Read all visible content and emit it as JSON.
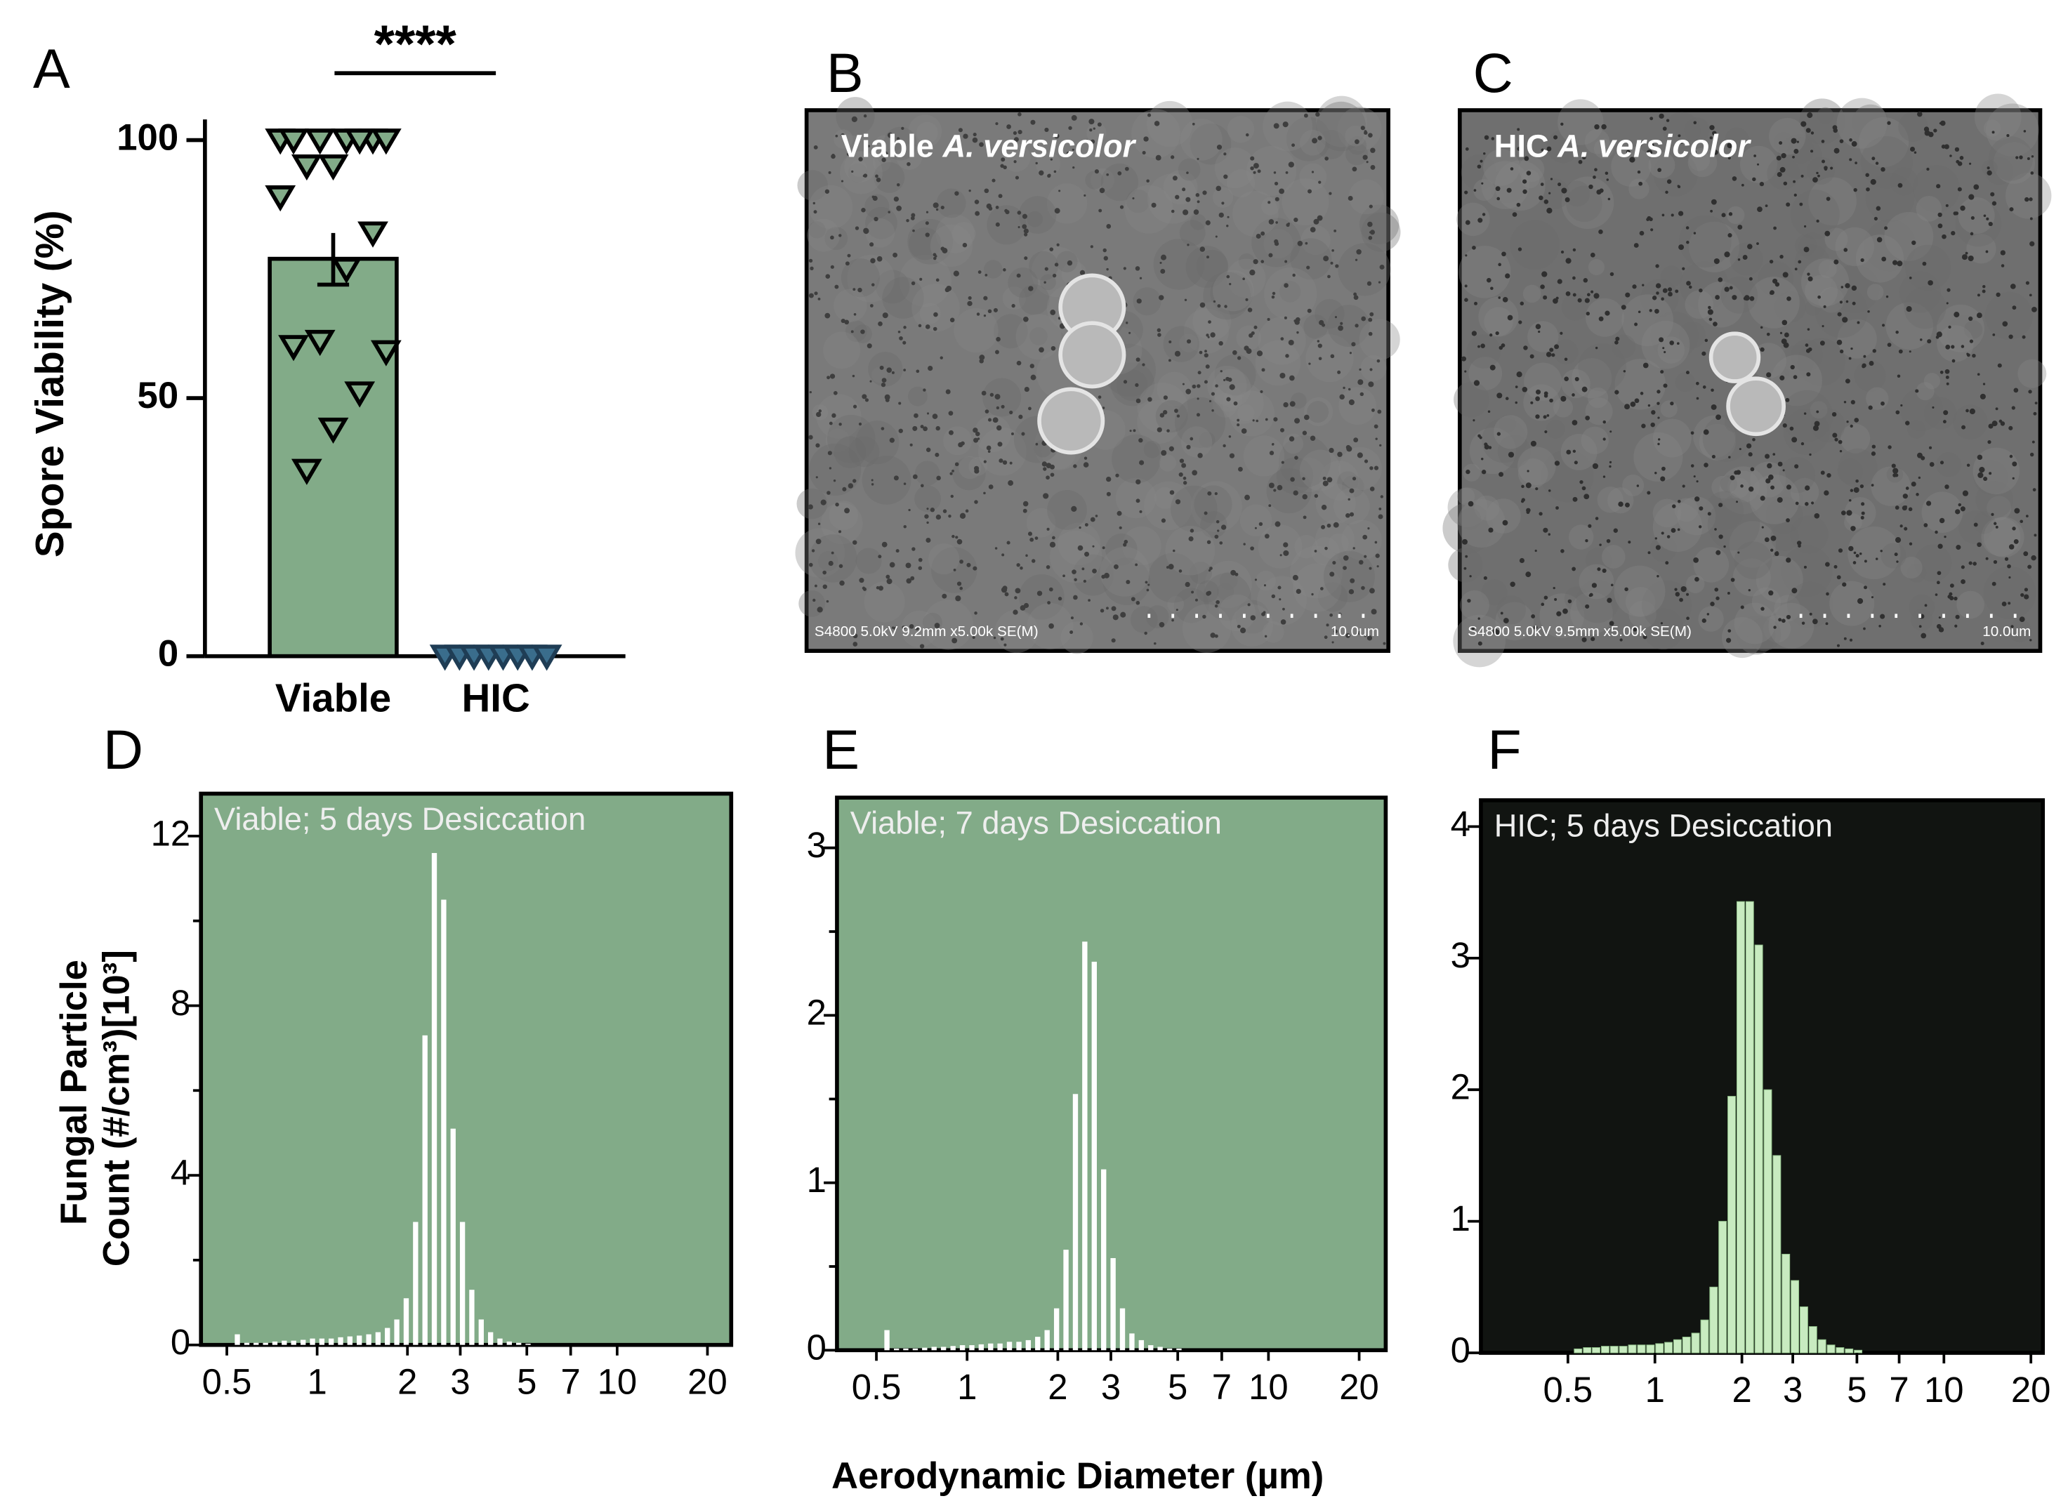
{
  "chart_data": [
    {
      "type": "bar",
      "panel_label": "A",
      "y_label": "Spore Viability (%)",
      "annotation": "****",
      "categories": [
        "Viable",
        "HIC"
      ],
      "values": [
        77,
        0
      ],
      "errors": [
        5,
        null
      ],
      "points": [
        [
          100,
          100,
          100,
          100,
          100,
          100,
          100,
          95,
          95,
          89,
          82,
          75,
          61,
          60,
          59,
          51,
          44,
          36
        ],
        [
          0,
          0,
          0,
          0,
          0,
          0,
          0,
          0
        ]
      ],
      "color": "#82ab88",
      "point_colors": [
        "#82ab88",
        "#3a6d8c"
      ],
      "ylim": [
        0,
        104
      ],
      "yticks": [
        0,
        50,
        100
      ]
    },
    {
      "type": "bar",
      "panel_label": "D",
      "title": "Viable; 5 days Desiccation",
      "log_x": true,
      "background": "#82ab88",
      "color": "#ffffff",
      "x": [
        0.542,
        0.583,
        0.626,
        0.673,
        0.723,
        0.777,
        0.835,
        0.898,
        0.965,
        1.037,
        1.114,
        1.197,
        1.286,
        1.382,
        1.486,
        1.596,
        1.715,
        1.843,
        1.981,
        2.129,
        2.288,
        2.458,
        2.642,
        2.839,
        3.051,
        3.278,
        3.523,
        3.786,
        4.068,
        4.371,
        4.698,
        5.048
      ],
      "values": [
        0.25,
        0.05,
        0.05,
        0.05,
        0.08,
        0.1,
        0.1,
        0.12,
        0.15,
        0.15,
        0.15,
        0.18,
        0.2,
        0.22,
        0.25,
        0.3,
        0.4,
        0.6,
        1.1,
        2.9,
        7.3,
        11.6,
        10.5,
        5.1,
        2.9,
        1.3,
        0.6,
        0.3,
        0.15,
        0.08,
        0.05,
        0.03
      ],
      "xlim": [
        0.41,
        24
      ],
      "xticks": [
        0.5,
        1,
        2,
        3,
        5,
        7,
        10,
        20
      ],
      "ylim": [
        0,
        13
      ],
      "yticks": [
        0,
        4,
        8,
        12
      ],
      "yminor": [
        2,
        6,
        10
      ]
    },
    {
      "type": "bar",
      "panel_label": "E",
      "title": "Viable; 7 days Desiccation",
      "log_x": true,
      "background": "#82ab88",
      "color": "#ffffff",
      "x": [
        0.542,
        0.583,
        0.626,
        0.673,
        0.723,
        0.777,
        0.835,
        0.898,
        0.965,
        1.037,
        1.114,
        1.197,
        1.286,
        1.382,
        1.486,
        1.596,
        1.715,
        1.843,
        1.981,
        2.129,
        2.288,
        2.458,
        2.642,
        2.839,
        3.051,
        3.278,
        3.523,
        3.786,
        4.068,
        4.371,
        4.698,
        5.048
      ],
      "values": [
        0.12,
        0.01,
        0.01,
        0.01,
        0.015,
        0.02,
        0.02,
        0.025,
        0.03,
        0.03,
        0.035,
        0.04,
        0.04,
        0.05,
        0.05,
        0.06,
        0.08,
        0.12,
        0.25,
        0.6,
        1.53,
        2.44,
        2.32,
        1.08,
        0.55,
        0.25,
        0.1,
        0.06,
        0.03,
        0.02,
        0.01,
        0.01
      ],
      "xlim": [
        0.37,
        24.5
      ],
      "xticks": [
        0.5,
        1,
        2,
        3,
        5,
        7,
        10,
        20
      ],
      "ylim": [
        0,
        3.3
      ],
      "yticks": [
        0,
        1,
        2,
        3
      ],
      "yminor": [
        0.5,
        1.5,
        2.5
      ]
    },
    {
      "type": "bar",
      "panel_label": "F",
      "title": "HIC; 5 days Desiccation",
      "log_x": true,
      "background": "#111411",
      "color": "#c8ebc0",
      "x": [
        0.542,
        0.583,
        0.626,
        0.673,
        0.723,
        0.777,
        0.835,
        0.898,
        0.965,
        1.037,
        1.114,
        1.197,
        1.286,
        1.382,
        1.486,
        1.596,
        1.715,
        1.843,
        1.981,
        2.129,
        2.288,
        2.458,
        2.642,
        2.839,
        3.051,
        3.278,
        3.523,
        3.786,
        4.068,
        4.371,
        4.698,
        5.048
      ],
      "values": [
        0.03,
        0.04,
        0.04,
        0.05,
        0.05,
        0.05,
        0.06,
        0.06,
        0.06,
        0.07,
        0.08,
        0.1,
        0.12,
        0.15,
        0.25,
        0.5,
        1.0,
        1.95,
        3.43,
        3.43,
        3.1,
        2.0,
        1.5,
        0.75,
        0.55,
        0.35,
        0.2,
        0.1,
        0.06,
        0.04,
        0.03,
        0.02
      ],
      "xlim": [
        0.25,
        22
      ],
      "xticks": [
        0.5,
        1,
        2,
        3,
        5,
        7,
        10,
        20
      ],
      "ylim": [
        0,
        4.2
      ],
      "yticks": [
        0,
        1,
        2,
        3,
        4
      ]
    }
  ],
  "images": [
    {
      "panel_label": "B",
      "caption_prefix": "Viable",
      "caption_species": "A. versicolor",
      "info": "S4800 5.0kV 9.2mm x5.00k SE(M)",
      "scale": "10.0um"
    },
    {
      "panel_label": "C",
      "caption_prefix": "HIC",
      "caption_species": "A. versicolor",
      "info": "S4800 5.0kV 9.5mm x5.00k SE(M)",
      "scale": "10.0um"
    }
  ],
  "shared": {
    "x_label": "Aerodynamic Diameter (µm)",
    "y_label_lines": [
      "Fungal Particle",
      "Count (#/cm³)[10³]"
    ]
  }
}
